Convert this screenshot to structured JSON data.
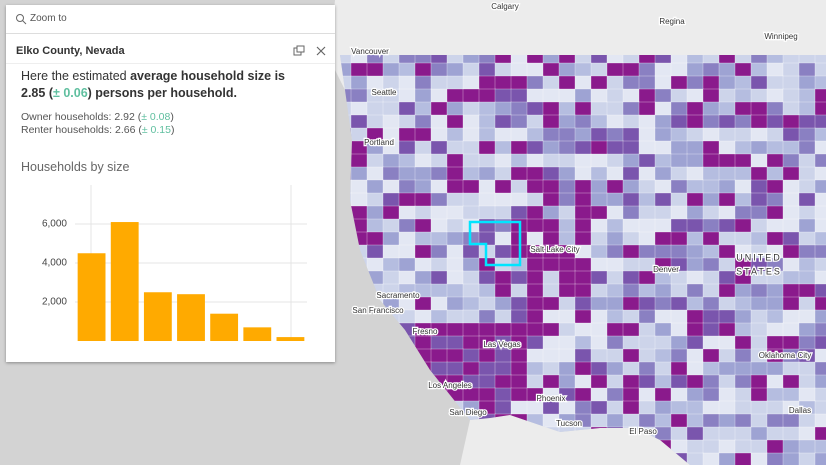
{
  "zoom_bar": {
    "label": "Zoom to"
  },
  "popup": {
    "title": "Elko County, Nevada",
    "summary": {
      "prefix": "Here the estimated ",
      "emphasis": "average household size is 2.85",
      "open": " (",
      "margin": "± 0.06",
      "close": ") persons per household."
    },
    "rows": [
      {
        "label": "Owner households: 2.92 (",
        "margin": "± 0.08",
        "close": ")"
      },
      {
        "label": "Renter households: 2.66 (",
        "margin": "± 0.15",
        "close": ")"
      }
    ]
  },
  "chart_data": {
    "type": "bar",
    "title": "Households by size",
    "categories": [
      null,
      null,
      null,
      null,
      null,
      null,
      null
    ],
    "values": [
      4500,
      6100,
      2500,
      2400,
      1400,
      700,
      200
    ],
    "color": "#ffaa00",
    "ylim": [
      0,
      8000
    ],
    "yticks": [
      {
        "value": 2000,
        "label": "2,000"
      },
      {
        "value": 4000,
        "label": "4,000"
      },
      {
        "value": 6000,
        "label": "6,000"
      }
    ],
    "grid": true
  },
  "map": {
    "labels": [
      "Calgary",
      "Regina",
      "Winnipeg",
      "Vancouver",
      "Seattle",
      "Portland",
      "Salt Lake City",
      "Denver",
      "UNITED",
      "STATES",
      "Sacramento",
      "San Francisco",
      "Fresno",
      "Las Vegas",
      "Los Angeles",
      "Phoenix",
      "San Diego",
      "Tucson",
      "El Paso",
      "Oklahoma City",
      "Dallas"
    ]
  }
}
